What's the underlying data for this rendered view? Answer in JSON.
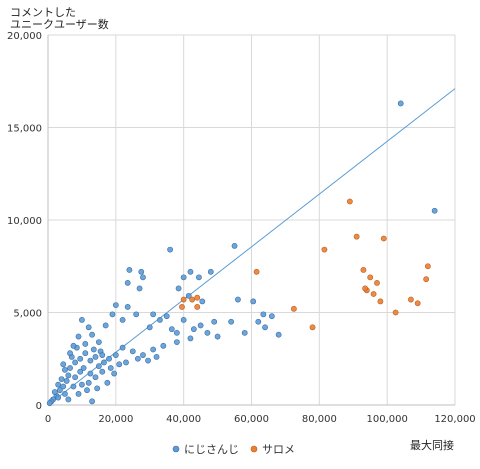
{
  "chart_data": {
    "type": "scatter",
    "ylabel_line1": "コメントした",
    "ylabel_line2": "ユニークユーザー数",
    "xlabel": "最大同接",
    "xlim": [
      0,
      120000
    ],
    "ylim": [
      0,
      20000
    ],
    "xticks": [
      0,
      20000,
      40000,
      60000,
      80000,
      100000,
      120000
    ],
    "yticks": [
      0,
      5000,
      10000,
      15000,
      20000
    ],
    "xtick_labels": [
      "0",
      "20,000",
      "40,000",
      "60,000",
      "80,000",
      "100,000",
      "120,000"
    ],
    "ytick_labels": [
      "0",
      "5,000",
      "10,000",
      "15,000",
      "20,000"
    ],
    "grid": true,
    "legend_position": "bottom",
    "trendline": {
      "from": [
        0,
        0
      ],
      "to": [
        120000,
        17100
      ],
      "color": "#5b9bd5"
    },
    "series": [
      {
        "name": "にじさんじ",
        "color": "#5b9bd5",
        "edge": "#3b6ea6",
        "points": [
          [
            104000,
            16300
          ],
          [
            114000,
            10500
          ],
          [
            55000,
            8600
          ],
          [
            36000,
            8400
          ],
          [
            24000,
            7300
          ],
          [
            27500,
            7200
          ],
          [
            28000,
            6900
          ],
          [
            23500,
            6600
          ],
          [
            27000,
            6300
          ],
          [
            48000,
            7200
          ],
          [
            42000,
            7200
          ],
          [
            44500,
            6900
          ],
          [
            40000,
            6900
          ],
          [
            38500,
            6300
          ],
          [
            41500,
            5900
          ],
          [
            45500,
            5600
          ],
          [
            56000,
            5700
          ],
          [
            60500,
            5600
          ],
          [
            63500,
            4900
          ],
          [
            66000,
            4800
          ],
          [
            62000,
            4500
          ],
          [
            64000,
            4200
          ],
          [
            54000,
            4500
          ],
          [
            49000,
            4500
          ],
          [
            40000,
            4600
          ],
          [
            35000,
            4800
          ],
          [
            31000,
            4900
          ],
          [
            20000,
            5400
          ],
          [
            23500,
            5300
          ],
          [
            26000,
            4900
          ],
          [
            19000,
            4900
          ],
          [
            22000,
            4600
          ],
          [
            17000,
            4300
          ],
          [
            30000,
            4200
          ],
          [
            33000,
            4600
          ],
          [
            36500,
            4100
          ],
          [
            38000,
            3900
          ],
          [
            43000,
            4100
          ],
          [
            45000,
            4300
          ],
          [
            47000,
            3900
          ],
          [
            50000,
            3700
          ],
          [
            58000,
            3900
          ],
          [
            68000,
            3800
          ],
          [
            42000,
            3600
          ],
          [
            38000,
            3400
          ],
          [
            34000,
            3200
          ],
          [
            31000,
            3000
          ],
          [
            28000,
            2700
          ],
          [
            25000,
            2900
          ],
          [
            22000,
            3100
          ],
          [
            20000,
            2700
          ],
          [
            18000,
            2500
          ],
          [
            16500,
            2300
          ],
          [
            15000,
            2100
          ],
          [
            14000,
            2600
          ],
          [
            12000,
            4200
          ],
          [
            10000,
            4600
          ],
          [
            13000,
            3800
          ],
          [
            11000,
            3300
          ],
          [
            9000,
            3700
          ],
          [
            8500,
            3100
          ],
          [
            15500,
            2900
          ],
          [
            12500,
            2400
          ],
          [
            10500,
            2000
          ],
          [
            9500,
            1800
          ],
          [
            8000,
            2300
          ],
          [
            7000,
            2600
          ],
          [
            6500,
            2000
          ],
          [
            6000,
            1600
          ],
          [
            5500,
            1300
          ],
          [
            5000,
            1900
          ],
          [
            4500,
            1000
          ],
          [
            4000,
            1400
          ],
          [
            3500,
            800
          ],
          [
            3000,
            1100
          ],
          [
            2500,
            500
          ],
          [
            2000,
            700
          ],
          [
            1500,
            300
          ],
          [
            1000,
            200
          ],
          [
            500,
            100
          ],
          [
            12000,
            1200
          ],
          [
            14000,
            1500
          ],
          [
            16000,
            1800
          ],
          [
            18500,
            2000
          ],
          [
            17500,
            1200
          ],
          [
            21000,
            2200
          ],
          [
            23000,
            2300
          ],
          [
            26500,
            2500
          ],
          [
            29500,
            2400
          ],
          [
            32000,
            2600
          ],
          [
            11500,
            800
          ],
          [
            9000,
            600
          ],
          [
            7500,
            1000
          ],
          [
            13000,
            200
          ],
          [
            6000,
            300
          ],
          [
            8000,
            1500
          ],
          [
            10000,
            1100
          ],
          [
            11000,
            2800
          ],
          [
            13500,
            3000
          ],
          [
            15000,
            3400
          ],
          [
            16000,
            2700
          ],
          [
            7500,
            3200
          ],
          [
            6500,
            2800
          ],
          [
            9500,
            2500
          ],
          [
            12500,
            1700
          ],
          [
            19500,
            1700
          ],
          [
            14500,
            900
          ],
          [
            4500,
            2200
          ],
          [
            5000,
            600
          ],
          [
            3000,
            400
          ]
        ]
      },
      {
        "name": "サロメ",
        "color": "#ed7d31",
        "edge": "#b85f20",
        "points": [
          [
            89000,
            11000
          ],
          [
            99000,
            9000
          ],
          [
            91000,
            9100
          ],
          [
            81500,
            8400
          ],
          [
            112000,
            7500
          ],
          [
            93000,
            7300
          ],
          [
            61500,
            7200
          ],
          [
            95000,
            6900
          ],
          [
            97000,
            6600
          ],
          [
            111500,
            6800
          ],
          [
            94000,
            6200
          ],
          [
            96000,
            6000
          ],
          [
            93500,
            6300
          ],
          [
            107000,
            5700
          ],
          [
            109000,
            5500
          ],
          [
            98000,
            5600
          ],
          [
            44000,
            5800
          ],
          [
            42500,
            5700
          ],
          [
            40000,
            5700
          ],
          [
            39500,
            5300
          ],
          [
            44000,
            5300
          ],
          [
            72500,
            5200
          ],
          [
            78000,
            4200
          ],
          [
            102500,
            5000
          ]
        ]
      }
    ]
  }
}
